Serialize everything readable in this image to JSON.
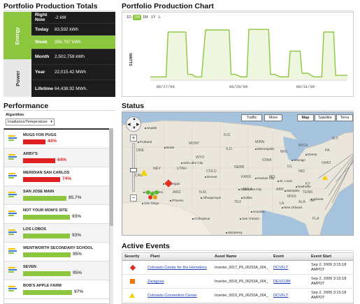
{
  "totals": {
    "title": "Portfolio Production Totals",
    "energy_label": "Energy",
    "power_label": "Power",
    "rows": [
      {
        "label": "Right Now",
        "value": "-2  kW"
      },
      {
        "label": "Today",
        "value": "83,592 kWh"
      },
      {
        "label": "Week",
        "value": "356,797 kWh"
      },
      {
        "label": "Month",
        "value": "2,502,759 kWh"
      },
      {
        "label": "Year",
        "value": "22,015.42  MWh"
      },
      {
        "label": "Lifetime",
        "value": "64,438.92  MWh."
      }
    ]
  },
  "production_chart": {
    "title": "Portfolio Production Chart",
    "ranges": [
      "1D",
      "1W",
      "1M",
      "1Y",
      "L"
    ],
    "active_range": "1W",
    "colors": {
      "line": "#8cc63f",
      "fill": "#eef6e0"
    }
  },
  "chart_data": {
    "type": "line",
    "ylabel": "WATTS",
    "x_ticks": [
      "08/27/09",
      "08/29/09",
      "08/31/09"
    ],
    "series": [
      {
        "x": [
          0.0,
          0.03,
          0.05,
          0.08,
          0.09,
          0.18,
          0.19,
          0.21,
          0.23,
          0.26,
          0.28,
          0.4,
          0.41,
          0.43,
          0.46,
          0.49,
          0.5,
          0.6,
          0.61,
          0.63,
          0.66,
          0.7,
          0.71,
          0.76,
          0.77,
          0.8,
          0.83,
          0.87,
          0.88,
          0.93,
          0.94,
          1.0
        ],
        "values": [
          0.05,
          0.05,
          0.05,
          0.05,
          0.92,
          0.92,
          0.1,
          0.1,
          0.05,
          0.05,
          0.96,
          0.96,
          0.1,
          0.1,
          0.05,
          0.05,
          0.97,
          0.97,
          0.1,
          0.1,
          0.05,
          0.05,
          0.55,
          0.55,
          0.12,
          0.12,
          0.05,
          0.05,
          0.92,
          0.92,
          0.08,
          0.08
        ]
      }
    ]
  },
  "performance": {
    "title": "Performance",
    "algorithm_label": "Algorithm",
    "algorithm_value": "Irradiance/Temperature",
    "items": [
      {
        "name": "MUGS FOR PUGS",
        "pct": "44%",
        "value": 44,
        "color": "#e02020"
      },
      {
        "name": "ARBY'S",
        "pct": "64%",
        "value": 64,
        "color": "#e02020"
      },
      {
        "name": "MERIDIAN SAN CARLOS",
        "pct": "74%",
        "value": 74,
        "color": "#e02020"
      },
      {
        "name": "SAN JOSE MAIN",
        "pct": "85.7%",
        "value": 85.7,
        "color": "#8cc63f"
      },
      {
        "name": "NOT YOUR MOM'S SITE",
        "pct": "93%",
        "value": 93,
        "color": "#8cc63f"
      },
      {
        "name": "LOS LOBOS",
        "pct": "93%",
        "value": 93,
        "color": "#8cc63f"
      },
      {
        "name": "WENTWORTH SECONDARY SCHOOL",
        "pct": "95%",
        "value": 95,
        "color": "#8cc63f"
      },
      {
        "name": "SEVEN",
        "pct": "95%",
        "value": 95,
        "color": "#8cc63f"
      },
      {
        "name": "BOB'S APPLE FARM",
        "pct": "97%",
        "value": 97,
        "color": "#8cc63f"
      }
    ]
  },
  "status": {
    "title": "Status",
    "map_buttons": [
      "Traffic",
      "More",
      "Map",
      "Satellite",
      "Terra"
    ],
    "active_button": "Map",
    "states": [
      "ORE",
      "CALI",
      "NEV",
      "UTAH",
      "MONT",
      "WYO",
      "COLO",
      "ARIZ",
      "N.M.",
      "TEX",
      "NEBR",
      "KANS",
      "OKLA",
      "MINN",
      "IOWA",
      "MO.",
      "ARK",
      "LA",
      "WIS",
      "ILL",
      "IND",
      "OHIO",
      "KY",
      "TENN",
      "MISS",
      "ALA",
      "GA",
      "FLA",
      "N.D.",
      "S.D.",
      "MICH",
      "PA",
      "N.Y."
    ],
    "cities": [
      "Seattle",
      "Portland",
      "Boise",
      "Salt Lake City",
      "Denver",
      "Las Vegas",
      "Los Angeles",
      "San Diego",
      "Phoenix",
      "Albuquerque",
      "Dallas",
      "Houston",
      "San Antonio",
      "Oklahoma City",
      "Kansas City",
      "St. Louis",
      "Chicago",
      "Minneapolis",
      "Detroit",
      "Atlanta",
      "Memphis",
      "Nashville",
      "New Orleans",
      "Monterrey",
      "Chihuahua"
    ]
  },
  "events": {
    "title": "Active Events",
    "columns": [
      "Severity",
      "Plant",
      "Asset Name",
      "Event",
      "Event Start"
    ],
    "rows": [
      {
        "severity": "critical",
        "plant": "Colorado Center for the Homeless",
        "asset": "Inverter_0017_P6_06253A_004_",
        "event": "DCVFLT",
        "start": "Sep 2, 2009 3:15:18 AMPDT"
      },
      {
        "severity": "major",
        "plant": "Zaragoza",
        "asset": "Inverter_0018_P6_06253A_004_",
        "event": "DEVCOM",
        "start": "Sep 2, 2009 3:15:18 AMPDT"
      },
      {
        "severity": "warning",
        "plant": "Colorado Convention Center",
        "asset": "Inverter_0019_P6_06253A_004_",
        "event": "DCVFLT",
        "start": "Sep 2, 2009 3:15:18 AMPDT"
      }
    ]
  }
}
